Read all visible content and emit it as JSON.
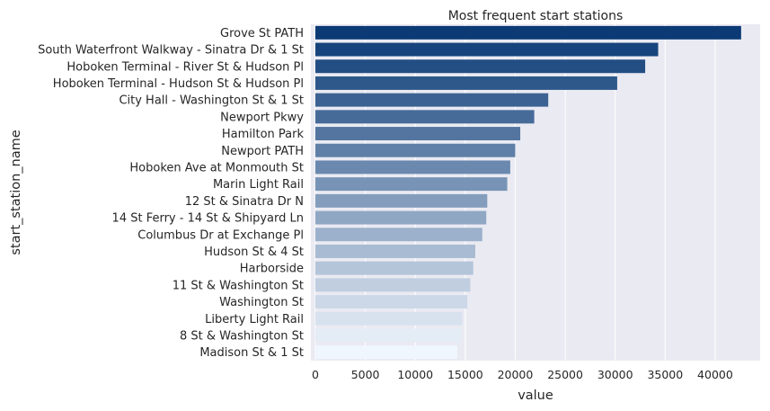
{
  "chart_data": {
    "type": "bar",
    "orientation": "horizontal",
    "title": "Most frequent start stations",
    "xlabel": "value",
    "ylabel": "start_station_name",
    "xlim": [
      0,
      44500
    ],
    "xticks": [
      0,
      5000,
      10000,
      15000,
      20000,
      25000,
      30000,
      35000,
      40000
    ],
    "grid": "on",
    "palette": "Blues_r",
    "color_dark": "#0b3a75",
    "color_light": "#f0f6fd",
    "background": "#eaeaf2",
    "categories": [
      "Grove St PATH",
      "South Waterfront Walkway - Sinatra Dr & 1 St",
      "Hoboken Terminal - River St & Hudson Pl",
      "Hoboken Terminal - Hudson St & Hudson Pl",
      "City Hall - Washington St & 1 St",
      "Newport Pkwy",
      "Hamilton Park",
      "Newport PATH",
      "Hoboken Ave at Monmouth St",
      "Marin Light Rail",
      "12 St & Sinatra Dr N",
      "14 St Ferry - 14 St & Shipyard Ln",
      "Columbus Dr at Exchange Pl",
      "Hudson St & 4 St",
      "Harborside",
      "11 St & Washington St",
      "Washington St",
      "Liberty Light Rail",
      "8 St & Washington St",
      "Madison St & 1 St"
    ],
    "values": [
      42600,
      34300,
      33000,
      30200,
      23300,
      21900,
      20500,
      20000,
      19500,
      19200,
      17200,
      17100,
      16700,
      16000,
      15800,
      15500,
      15200,
      14700,
      14600,
      14200
    ]
  }
}
